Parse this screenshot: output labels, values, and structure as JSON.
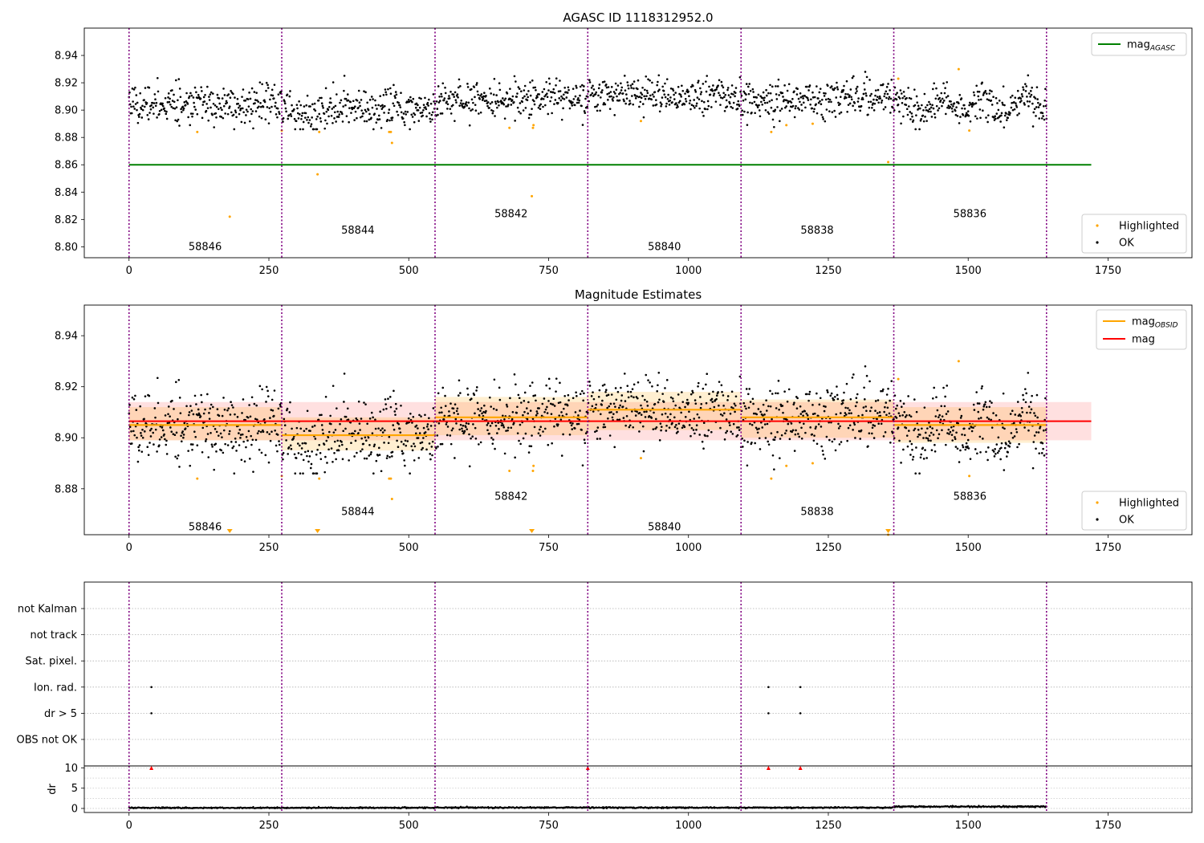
{
  "figure": {
    "title": "AGASC ID 1118312952.0",
    "title2": "Magnitude Estimates"
  },
  "chart_data": [
    {
      "type": "scatter",
      "panel": "top",
      "title": "AGASC ID 1118312952.0",
      "xlabel": "",
      "ylabel": "",
      "xlim": [
        -80,
        1900
      ],
      "ylim": [
        8.792,
        8.96
      ],
      "x_ticks": [
        0,
        250,
        500,
        750,
        1000,
        1250,
        1500,
        1750
      ],
      "y_ticks": [
        8.8,
        8.82,
        8.84,
        8.86,
        8.88,
        8.9,
        8.92,
        8.94
      ],
      "grid": false,
      "legend_top": {
        "placement": "top-right",
        "entries": [
          {
            "label": "mag",
            "sub": "AGASC",
            "color": "#008000",
            "marker": "line"
          }
        ]
      },
      "legend_bottom": {
        "placement": "bottom-right",
        "entries": [
          {
            "label": "Highlighted",
            "color": "#ffa500",
            "marker": "dot"
          },
          {
            "label": "OK",
            "color": "#000000",
            "marker": "dot"
          }
        ]
      },
      "agasc_mag": 8.86,
      "agasc_x_range": [
        0,
        1720
      ],
      "obsid_boundaries": [
        0,
        273,
        547,
        820,
        1094,
        1367,
        1640
      ],
      "obsid_labels": [
        {
          "text": "58846",
          "x": 136,
          "y": 8.8
        },
        {
          "text": "58844",
          "x": 409,
          "y": 8.812
        },
        {
          "text": "58842",
          "x": 683,
          "y": 8.824
        },
        {
          "text": "58840",
          "x": 957,
          "y": 8.8
        },
        {
          "text": "58838",
          "x": 1230,
          "y": 8.812
        },
        {
          "text": "58836",
          "x": 1503,
          "y": 8.824
        }
      ],
      "ok_series": {
        "name": "OK",
        "segment_mean": [
          8.904,
          8.901,
          8.908,
          8.911,
          8.908,
          8.904
        ],
        "scatter_sd": 0.0068,
        "x_range": [
          0,
          1640
        ]
      },
      "highlighted": [
        [
          122,
          8.884
        ],
        [
          180,
          8.822
        ],
        [
          273,
          8.885
        ],
        [
          337,
          8.853
        ],
        [
          340,
          8.884
        ],
        [
          465,
          8.884
        ],
        [
          468,
          8.884
        ],
        [
          470,
          8.876
        ],
        [
          680,
          8.887
        ],
        [
          720,
          8.837
        ],
        [
          722,
          8.887
        ],
        [
          723,
          8.889
        ],
        [
          915,
          8.892
        ],
        [
          1148,
          8.884
        ],
        [
          1175,
          8.889
        ],
        [
          1222,
          8.89
        ],
        [
          1357,
          8.862
        ],
        [
          1375,
          8.923
        ],
        [
          1483,
          8.93
        ],
        [
          1502,
          8.885
        ]
      ]
    },
    {
      "type": "scatter",
      "panel": "middle",
      "title": "Magnitude Estimates",
      "xlabel": "",
      "ylabel": "",
      "xlim": [
        -80,
        1900
      ],
      "ylim": [
        8.862,
        8.952
      ],
      "x_ticks": [
        0,
        250,
        500,
        750,
        1000,
        1250,
        1500,
        1750
      ],
      "y_ticks": [
        8.88,
        8.9,
        8.92,
        8.94
      ],
      "grid": false,
      "legend_top": {
        "placement": "top-right",
        "entries": [
          {
            "label": "mag",
            "sub": "OBSID",
            "color": "#ffa500",
            "marker": "line"
          },
          {
            "label": "mag",
            "sub": "",
            "color": "#ff0000",
            "marker": "line"
          }
        ]
      },
      "legend_bottom": {
        "placement": "bottom-right",
        "entries": [
          {
            "label": "Highlighted",
            "color": "#ffa500",
            "marker": "dot"
          },
          {
            "label": "OK",
            "color": "#000000",
            "marker": "dot"
          }
        ]
      },
      "mag": 8.9065,
      "mag_band": [
        8.899,
        8.914
      ],
      "mag_x_range": [
        0,
        1720
      ],
      "obsid_mags": [
        {
          "x0": 0,
          "x1": 273,
          "mag": 8.905,
          "band": [
            8.899,
            8.912
          ]
        },
        {
          "x0": 273,
          "x1": 547,
          "mag": 8.901,
          "band": [
            8.895,
            8.908
          ]
        },
        {
          "x0": 547,
          "x1": 820,
          "mag": 8.908,
          "band": [
            8.901,
            8.916
          ]
        },
        {
          "x0": 820,
          "x1": 1094,
          "mag": 8.911,
          "band": [
            8.903,
            8.918
          ]
        },
        {
          "x0": 1094,
          "x1": 1367,
          "mag": 8.908,
          "band": [
            8.9,
            8.915
          ]
        },
        {
          "x0": 1367,
          "x1": 1640,
          "mag": 8.905,
          "band": [
            8.898,
            8.912
          ]
        }
      ],
      "obsid_boundaries": [
        0,
        273,
        547,
        820,
        1094,
        1367,
        1640
      ],
      "obsid_labels": [
        {
          "text": "58846",
          "x": 136,
          "y": 8.865
        },
        {
          "text": "58844",
          "x": 409,
          "y": 8.871
        },
        {
          "text": "58842",
          "x": 683,
          "y": 8.877
        },
        {
          "text": "58840",
          "x": 957,
          "y": 8.865
        },
        {
          "text": "58838",
          "x": 1230,
          "y": 8.871
        },
        {
          "text": "58836",
          "x": 1503,
          "y": 8.877
        }
      ],
      "below_range_markers": [
        180,
        337,
        720,
        1357
      ]
    },
    {
      "type": "scatter",
      "panel": "flags",
      "xlabel": "",
      "ylabel": "",
      "categories": [
        "not Kalman",
        "not track",
        "Sat. pixel.",
        "Ion. rad.",
        "dr > 5",
        "OBS not OK"
      ],
      "grid": true,
      "flag_points": [
        {
          "category": "Ion. rad.",
          "x": [
            40,
            1143,
            1200
          ]
        },
        {
          "category": "dr > 5",
          "x": [
            40,
            1143,
            1200
          ]
        }
      ],
      "obsid_boundaries": [
        0,
        273,
        547,
        820,
        1094,
        1367,
        1640
      ]
    },
    {
      "type": "scatter",
      "panel": "dr",
      "xlabel": "",
      "ylabel": "dr",
      "xlim": [
        -80,
        1900
      ],
      "ylim": [
        -1,
        10.5
      ],
      "x_ticks": [
        0,
        250,
        500,
        750,
        1000,
        1250,
        1500,
        1750
      ],
      "y_ticks": [
        0,
        5,
        10
      ],
      "grid": true,
      "clipped_markers_x": [
        40,
        820,
        1143,
        1200
      ],
      "clip_value": 10,
      "dr_typical": [
        0.15,
        0.15,
        0.2,
        0.2,
        0.2,
        0.45
      ]
    }
  ]
}
